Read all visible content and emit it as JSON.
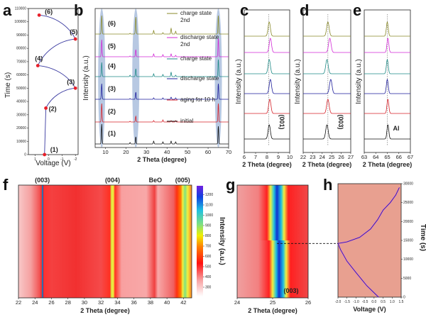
{
  "chart_data": [
    {
      "panel": "a",
      "type": "line",
      "xlabel": "Voltage (V)",
      "ylabel": "Time (s)",
      "xlim": [
        1.5,
        -2.2
      ],
      "x_reversed": true,
      "xticks": [
        "1",
        "0",
        "-1",
        "-2"
      ],
      "ylim": [
        0,
        110000
      ],
      "yticks": [
        "0",
        "10000",
        "20000",
        "30000",
        "40000",
        "50000",
        "60000",
        "70000",
        "80000",
        "90000",
        "100000",
        "110000"
      ],
      "points": [
        {
          "label": "(1)",
          "voltage": 0.3,
          "time": 0
        },
        {
          "label": "(2)",
          "voltage": 0.2,
          "time": 35000
        },
        {
          "label": "(3)",
          "voltage": -2.0,
          "time": 50000
        },
        {
          "label": "(4)",
          "voltage": 0.8,
          "time": 67000
        },
        {
          "label": "(5)",
          "voltage": -2.0,
          "time": 87000
        },
        {
          "label": "(6)",
          "voltage": 0.7,
          "time": 105000
        }
      ],
      "line_color": "#3a3aa0",
      "point_color": "#e8202a"
    },
    {
      "panel": "b",
      "type": "line",
      "xlabel": "2 Theta (degree)",
      "ylabel": "Intensity (a.u.)",
      "xlim": [
        5,
        70
      ],
      "xticks": [
        "10",
        "20",
        "30",
        "40",
        "50",
        "60",
        "70"
      ],
      "highlight_bands": [
        8.2,
        24.8,
        65.0
      ],
      "peaks": [
        8.2,
        22.0,
        24.8,
        33.5,
        38.0,
        42.0,
        44.2,
        65.0
      ],
      "series": [
        {
          "label": "(1)",
          "name": "initial",
          "color": "#111111"
        },
        {
          "label": "(2)",
          "name": "aging for 10 h",
          "color": "#d6222a"
        },
        {
          "label": "(3)",
          "name": "discharge state",
          "color": "#1f1f9c"
        },
        {
          "label": "(4)",
          "name": "charge state",
          "color": "#1e8a86"
        },
        {
          "label": "(5)",
          "name": "discharge state 2nd",
          "color": "#d22ad6"
        },
        {
          "label": "(6)",
          "name": "charge state 2nd",
          "color": "#8a8a2a"
        }
      ],
      "legend": [
        {
          "line1": "charge state",
          "line2": "2nd"
        },
        {
          "line1": "discharge state",
          "line2": "2nd"
        },
        {
          "line1": "charge state",
          "line2": ""
        },
        {
          "line1": "discharge state",
          "line2": ""
        },
        {
          "line1": "aging for 10 h",
          "line2": ""
        },
        {
          "line1": "initial",
          "line2": ""
        }
      ]
    },
    {
      "panel": "c",
      "type": "line",
      "xlabel": "2 Theta (degree)",
      "ylabel": "Intensity (a.u.)",
      "xlim": [
        6,
        10
      ],
      "xticks": [
        "6",
        "7",
        "8",
        "9",
        "10"
      ],
      "annotation": "(001)",
      "reference_line": 8.15,
      "peak_positions": [
        8.2,
        8.25,
        8.3,
        8.2,
        8.3,
        8.2
      ]
    },
    {
      "panel": "d",
      "type": "line",
      "xlabel": "2 Theta (degree)",
      "ylabel": "Intensity (a.u.)",
      "xlim": [
        22,
        27
      ],
      "xticks": [
        "22",
        "23",
        "24",
        "25",
        "26",
        "27"
      ],
      "annotation": "(003)",
      "reference_line": 24.6,
      "peak_positions": [
        24.5,
        24.6,
        24.9,
        24.5,
        24.8,
        24.6
      ]
    },
    {
      "panel": "e",
      "type": "line",
      "xlabel": "2 Theta (degree)",
      "ylabel": "Intensity (a.u.)",
      "xlim": [
        63,
        67
      ],
      "xticks": [
        "63",
        "64",
        "65",
        "66",
        "67"
      ],
      "annotation": "Al",
      "reference_line": 65.0,
      "peak_positions": [
        65.05,
        65.05,
        65.0,
        65.0,
        65.05,
        65.0
      ]
    },
    {
      "panel": "f",
      "type": "heatmap",
      "xlabel": "2 Theta (degree)",
      "xlim": [
        22,
        43
      ],
      "xticks": [
        "22",
        "24",
        "26",
        "28",
        "30",
        "32",
        "34",
        "36",
        "38",
        "40",
        "42"
      ],
      "peak_labels": [
        {
          "text": "(003)",
          "x": 24.9
        },
        {
          "text": "(004)",
          "x": 33.4
        },
        {
          "text": "BeO",
          "x": 38.6
        },
        {
          "text": "(005)",
          "x": 41.9
        }
      ],
      "colorbar_label": "Intensity (a.u.)",
      "colorbar_ticks": [
        "300",
        "400",
        "500",
        "600",
        "700",
        "800",
        "900",
        "1000",
        "1100",
        "1200"
      ]
    },
    {
      "panel": "g",
      "type": "heatmap",
      "xlabel": "2 Theta (degree)",
      "xlim": [
        24,
        26
      ],
      "xticks": [
        "24",
        "25",
        "26"
      ],
      "annotation": "(003)",
      "peak_center": 24.9
    },
    {
      "panel": "h",
      "type": "line",
      "xlabel": "Voltage (V)",
      "ylabel": "Time (s)",
      "xlim": [
        -2.0,
        1.5
      ],
      "xticks": [
        "-2.0",
        "-1.5",
        "-1.0",
        "-0.5",
        "0.0",
        "0.5",
        "1.0",
        "1.5"
      ],
      "ylim": [
        0,
        30000
      ],
      "yticks": [
        "0",
        "5000",
        "10000",
        "15000",
        "20000",
        "25000",
        "30000"
      ],
      "curve": [
        {
          "v": 0.25,
          "t": 0
        },
        {
          "v": -0.4,
          "t": 3000
        },
        {
          "v": -1.0,
          "t": 6500
        },
        {
          "v": -1.5,
          "t": 9500
        },
        {
          "v": -1.85,
          "t": 12500
        },
        {
          "v": -2.0,
          "t": 14200
        },
        {
          "v": -1.5,
          "t": 14600
        },
        {
          "v": -0.8,
          "t": 15800
        },
        {
          "v": -0.2,
          "t": 18000
        },
        {
          "v": 0.2,
          "t": 20500
        },
        {
          "v": 0.5,
          "t": 23000
        },
        {
          "v": 0.9,
          "t": 25000
        },
        {
          "v": 1.2,
          "t": 27000
        },
        {
          "v": 1.4,
          "t": 29000
        }
      ],
      "marker_time": 14200,
      "background": "#e8a090"
    }
  ],
  "panel_labels": [
    "a",
    "b",
    "c",
    "d",
    "e",
    "f",
    "g",
    "h"
  ]
}
